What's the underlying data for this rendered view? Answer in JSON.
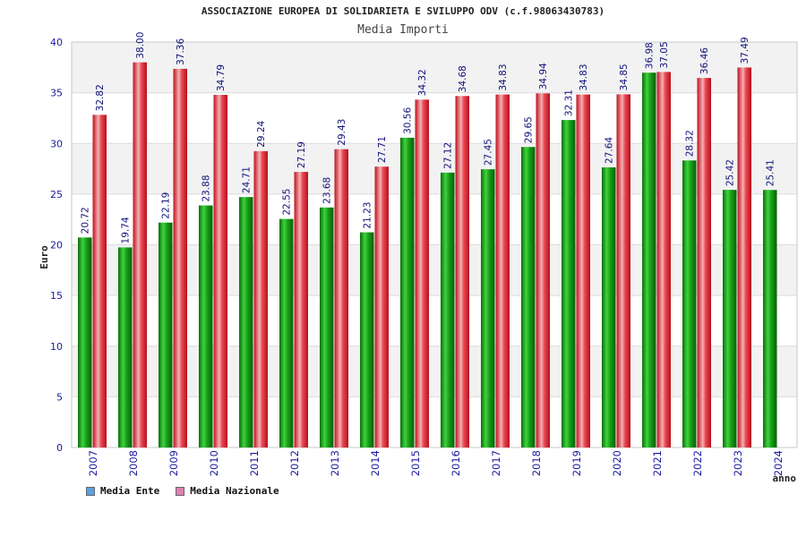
{
  "title": "ASSOCIAZIONE EUROPEA DI SOLIDARIETA E SVILUPPO ODV (c.f.98063430783)",
  "subtitle": "Media Importi",
  "chart_data": {
    "type": "bar",
    "ylabel": "Euro",
    "xlabel": "anno",
    "ylim": [
      0,
      40
    ],
    "yticks": [
      0,
      5,
      10,
      15,
      20,
      25,
      30,
      35,
      40
    ],
    "grid": true,
    "legend_position": "bottom-left",
    "categories": [
      "2007",
      "2008",
      "2009",
      "2010",
      "2011",
      "2012",
      "2013",
      "2014",
      "2015",
      "2016",
      "2017",
      "2018",
      "2019",
      "2020",
      "2021",
      "2022",
      "2023",
      "2024"
    ],
    "series": [
      {
        "name": "Media Ente",
        "color": "#1a9a1a",
        "legend_color": "#5aa0e6",
        "values": [
          20.72,
          19.74,
          22.19,
          23.88,
          24.71,
          22.55,
          23.68,
          21.23,
          30.56,
          27.12,
          27.45,
          29.65,
          32.31,
          27.64,
          36.98,
          28.32,
          25.42,
          25.41
        ]
      },
      {
        "name": "Media Nazionale",
        "color": "#e82a38",
        "legend_color": "#e080b0",
        "values": [
          32.82,
          38.0,
          37.36,
          34.79,
          29.24,
          27.19,
          29.43,
          27.71,
          34.32,
          34.68,
          34.83,
          34.94,
          34.83,
          34.85,
          37.05,
          36.46,
          37.49,
          null
        ]
      }
    ],
    "data_labels": [
      [
        "20.72",
        "19.74",
        "22.19",
        "23.88",
        "24.71",
        "22.55",
        "23.68",
        "21.23",
        "30.56",
        "27.12",
        "27.45",
        "29.65",
        "32.31",
        "27.64",
        "36.98",
        "28.32",
        "25.42",
        "25.41"
      ],
      [
        "32.82",
        "38.00",
        "37.36",
        "34.79",
        "29.24",
        "27.19",
        "29.43",
        "27.71",
        "34.32",
        "34.68",
        "34.83",
        "34.94",
        "34.83",
        "34.85",
        "37.05",
        "36.46",
        "37.49",
        ""
      ]
    ]
  }
}
